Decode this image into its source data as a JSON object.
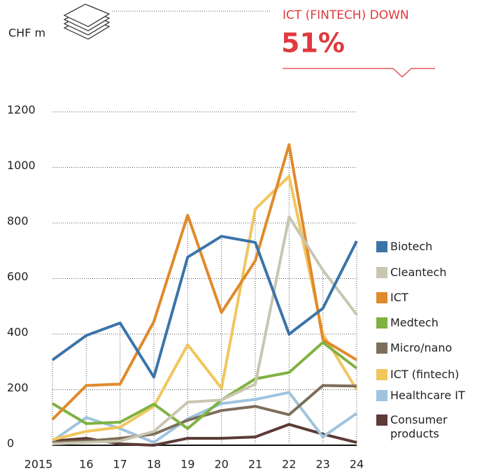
{
  "chart_data": {
    "type": "line",
    "unit_label": "CHF m",
    "annotation": {
      "title": "ICT (FINTECH) DOWN",
      "value": "51%"
    },
    "categories": [
      "2015",
      "16",
      "17",
      "18",
      "19",
      "20",
      "21",
      "22",
      "23",
      "24"
    ],
    "series": [
      {
        "name": "Biotech",
        "color": "#3b74a9",
        "values": [
          307,
          395,
          440,
          245,
          677,
          752,
          730,
          400,
          493,
          735
        ]
      },
      {
        "name": "Cleantech",
        "color": "#c9c6b1",
        "values": [
          5,
          10,
          15,
          50,
          155,
          163,
          220,
          822,
          630,
          470
        ]
      },
      {
        "name": "ICT",
        "color": "#e08a2b",
        "values": [
          93,
          215,
          220,
          445,
          828,
          478,
          664,
          1082,
          380,
          307
        ]
      },
      {
        "name": "Medtech",
        "color": "#80b242",
        "values": [
          150,
          78,
          83,
          148,
          60,
          163,
          239,
          262,
          370,
          277
        ]
      },
      {
        "name": "Micro/nano",
        "color": "#7d6e5b",
        "values": [
          10,
          15,
          25,
          40,
          90,
          125,
          140,
          110,
          215,
          213
        ]
      },
      {
        "name": "ICT (fintech)",
        "color": "#f0c65d",
        "values": [
          20,
          50,
          65,
          140,
          362,
          205,
          850,
          968,
          400,
          200
        ]
      },
      {
        "name": "Healthcare IT",
        "color": "#a0c4de",
        "values": [
          15,
          100,
          60,
          10,
          95,
          150,
          165,
          190,
          30,
          115
        ]
      },
      {
        "name": "Consumer products",
        "color": "#5c3a36",
        "values": [
          15,
          25,
          5,
          0,
          25,
          25,
          30,
          75,
          40,
          10
        ]
      }
    ],
    "ylim": [
      0,
      1200
    ],
    "yticks": [
      0,
      200,
      400,
      600,
      800,
      1000,
      1200
    ],
    "grid": true
  }
}
